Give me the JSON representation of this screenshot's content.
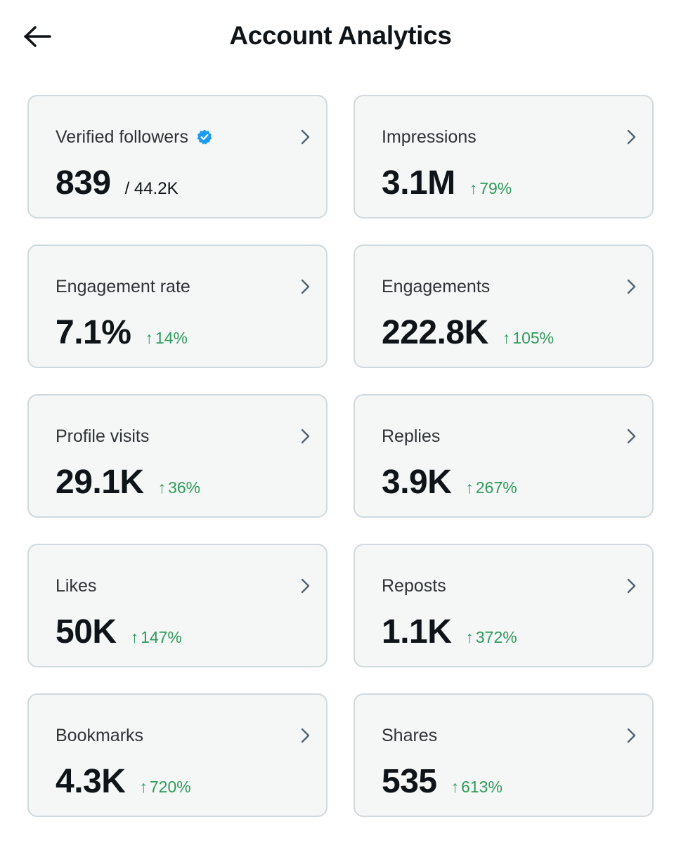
{
  "header": {
    "title": "Account Analytics",
    "back_icon": "arrow-left-icon"
  },
  "colors": {
    "positive_change": "#2e9a5b",
    "verified_badge": "#1d9bf0",
    "card_background": "#f5f7f7",
    "card_border": "#cfd9de"
  },
  "cards": [
    {
      "label": "Verified followers",
      "value": "839",
      "sub": "/ 44.2K",
      "verified_icon": "verified-badge-icon"
    },
    {
      "label": "Impressions",
      "value": "3.1M",
      "arrow": "↑",
      "change": "79%"
    },
    {
      "label": "Engagement rate",
      "value": "7.1%",
      "arrow": "↑",
      "change": "14%"
    },
    {
      "label": "Engagements",
      "value": "222.8K",
      "arrow": "↑",
      "change": "105%"
    },
    {
      "label": "Profile visits",
      "value": "29.1K",
      "arrow": "↑",
      "change": "36%"
    },
    {
      "label": "Replies",
      "value": "3.9K",
      "arrow": "↑",
      "change": "267%"
    },
    {
      "label": "Likes",
      "value": "50K",
      "arrow": "↑",
      "change": "147%"
    },
    {
      "label": "Reposts",
      "value": "1.1K",
      "arrow": "↑",
      "change": "372%"
    },
    {
      "label": "Bookmarks",
      "value": "4.3K",
      "arrow": "↑",
      "change": "720%"
    },
    {
      "label": "Shares",
      "value": "535",
      "arrow": "↑",
      "change": "613%"
    }
  ]
}
